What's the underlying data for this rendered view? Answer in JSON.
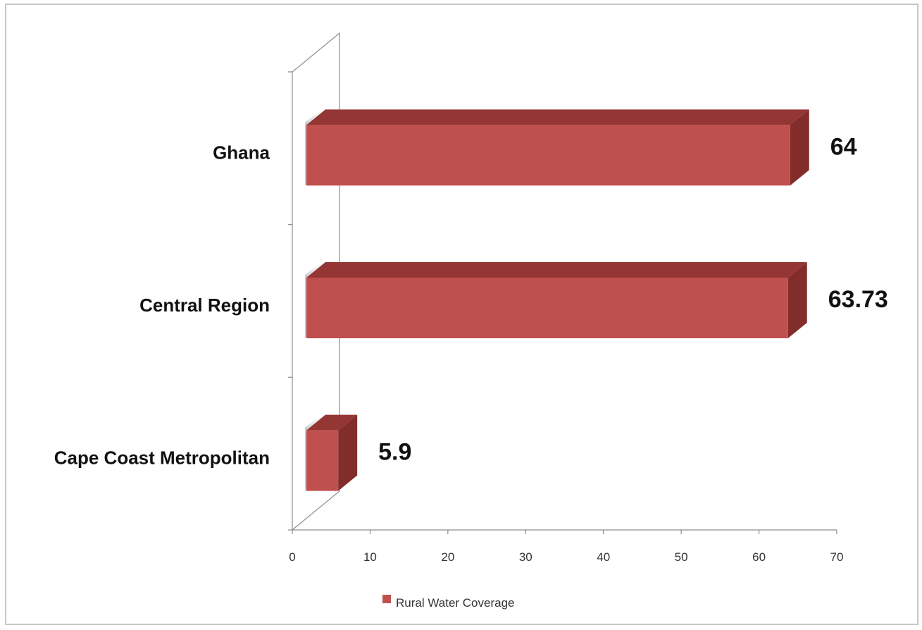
{
  "chart_data": {
    "type": "bar",
    "orientation": "horizontal",
    "style": "3d",
    "categories": [
      "Cape Coast Metropolitan",
      "Central Region",
      "Ghana"
    ],
    "series": [
      {
        "name": "Rural Water Coverage",
        "values": [
          5.9,
          63.73,
          64
        ],
        "value_labels": [
          "5.9",
          "63.73",
          "64"
        ],
        "color": "#c0504d",
        "top_color": "#943634",
        "side_color": "#832d2b"
      }
    ],
    "xlim": [
      0,
      70
    ],
    "x_ticks": [
      "0",
      "10",
      "20",
      "30",
      "40",
      "50",
      "60",
      "70"
    ],
    "legend_position": "bottom",
    "grid": false
  }
}
